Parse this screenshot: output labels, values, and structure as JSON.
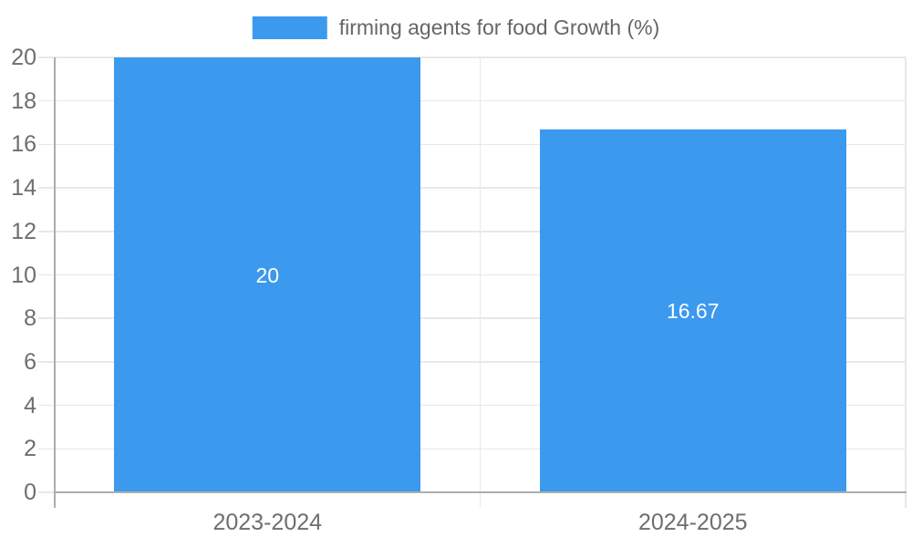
{
  "chart_data": {
    "type": "bar",
    "categories": [
      "2023-2024",
      "2024-2025"
    ],
    "series": [
      {
        "name": "firming agents for food Growth (%)",
        "values": [
          20,
          16.67
        ],
        "value_labels": [
          "20",
          "16.67"
        ]
      }
    ],
    "title": "",
    "xlabel": "",
    "ylabel": "",
    "ylim": [
      0,
      20
    ],
    "ytick_step": 2,
    "grid": true,
    "legend_position": "top-center",
    "bar_label_position": "inside-center"
  },
  "colors": {
    "bar": "#3B99EE",
    "bar_value_text": "#ffffff",
    "gridline": "#e8e8e8",
    "axis_line": "#adadad",
    "tick_text": "#6e6e6e",
    "legend_text": "#666666",
    "background": "#ffffff"
  }
}
